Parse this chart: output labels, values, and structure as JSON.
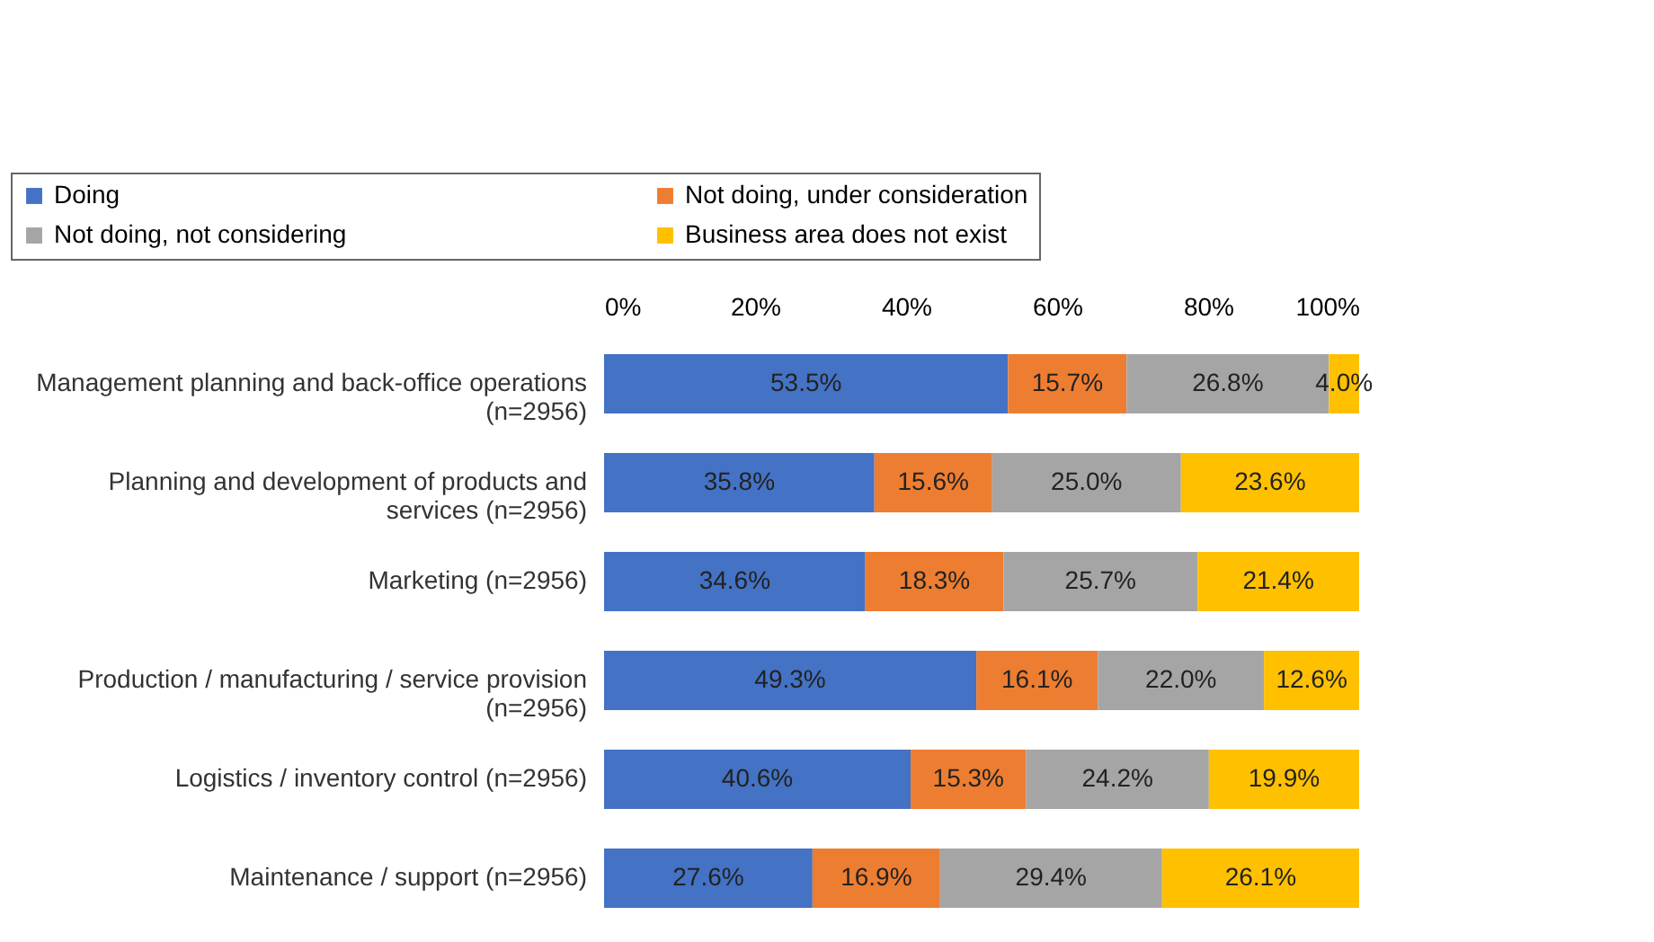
{
  "chart_data": {
    "type": "bar",
    "orientation": "horizontal",
    "stacked": true,
    "legend": "top",
    "grid": false,
    "categories": [
      "Management planning and back-office operations (n=2956)",
      "Planning and development of products and services (n=2956)",
      "Marketing (n=2956)",
      "Production / manufacturing / service provision (n=2956)",
      "Logistics / inventory control (n=2956)",
      "Maintenance / support (n=2956)"
    ],
    "xlim": [
      0,
      100
    ],
    "xticks": [
      {
        "value": 0,
        "label": "0%"
      },
      {
        "value": 20,
        "label": "20%"
      },
      {
        "value": 40,
        "label": "40%"
      },
      {
        "value": 60,
        "label": "60%"
      },
      {
        "value": 80,
        "label": "80%"
      },
      {
        "value": 100,
        "label": "100%"
      }
    ],
    "series": [
      {
        "name": "Doing",
        "color": "#4472c4",
        "values": [
          53.5,
          35.8,
          34.6,
          49.3,
          40.6,
          27.6
        ],
        "value_labels": [
          "53.5%",
          "35.8%",
          "34.6%",
          "49.3%",
          "40.6%",
          "27.6%"
        ]
      },
      {
        "name": "Not doing, under consideration",
        "color": "#ed7d31",
        "values": [
          15.7,
          15.6,
          18.3,
          16.1,
          15.3,
          16.9
        ],
        "value_labels": [
          "15.7%",
          "15.6%",
          "18.3%",
          "16.1%",
          "15.3%",
          "16.9%"
        ]
      },
      {
        "name": "Not doing, not considering",
        "color": "#a5a5a5",
        "values": [
          26.8,
          25.0,
          25.7,
          22.0,
          24.2,
          29.4
        ],
        "value_labels": [
          "26.8%",
          "25.0%",
          "25.7%",
          "22.0%",
          "24.2%",
          "29.4%"
        ]
      },
      {
        "name": "Business area does not exist",
        "color": "#ffc000",
        "values": [
          4.0,
          23.6,
          21.4,
          12.6,
          19.9,
          26.1
        ],
        "value_labels": [
          "4.0%",
          "23.6%",
          "21.4%",
          "12.6%",
          "19.9%",
          "26.1%"
        ]
      }
    ]
  }
}
